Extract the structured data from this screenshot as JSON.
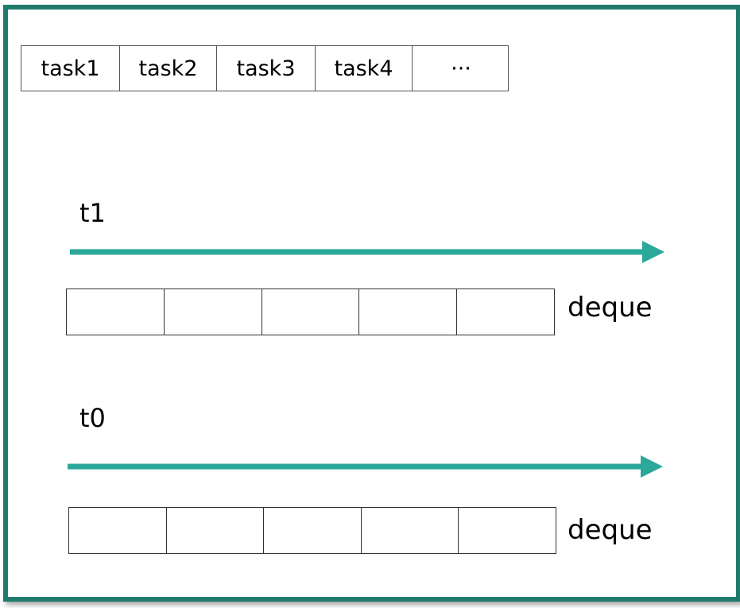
{
  "task_queue": {
    "cells": [
      "task1",
      "task2",
      "task3",
      "task4",
      "···"
    ]
  },
  "threads": [
    {
      "name": "t1",
      "deque_label": "deque",
      "slots": 5
    },
    {
      "name": "t0",
      "deque_label": "deque",
      "slots": 5
    }
  ],
  "colors": {
    "border": "#1f7a6c",
    "arrow": "#2aa89a",
    "line": "#333333"
  }
}
